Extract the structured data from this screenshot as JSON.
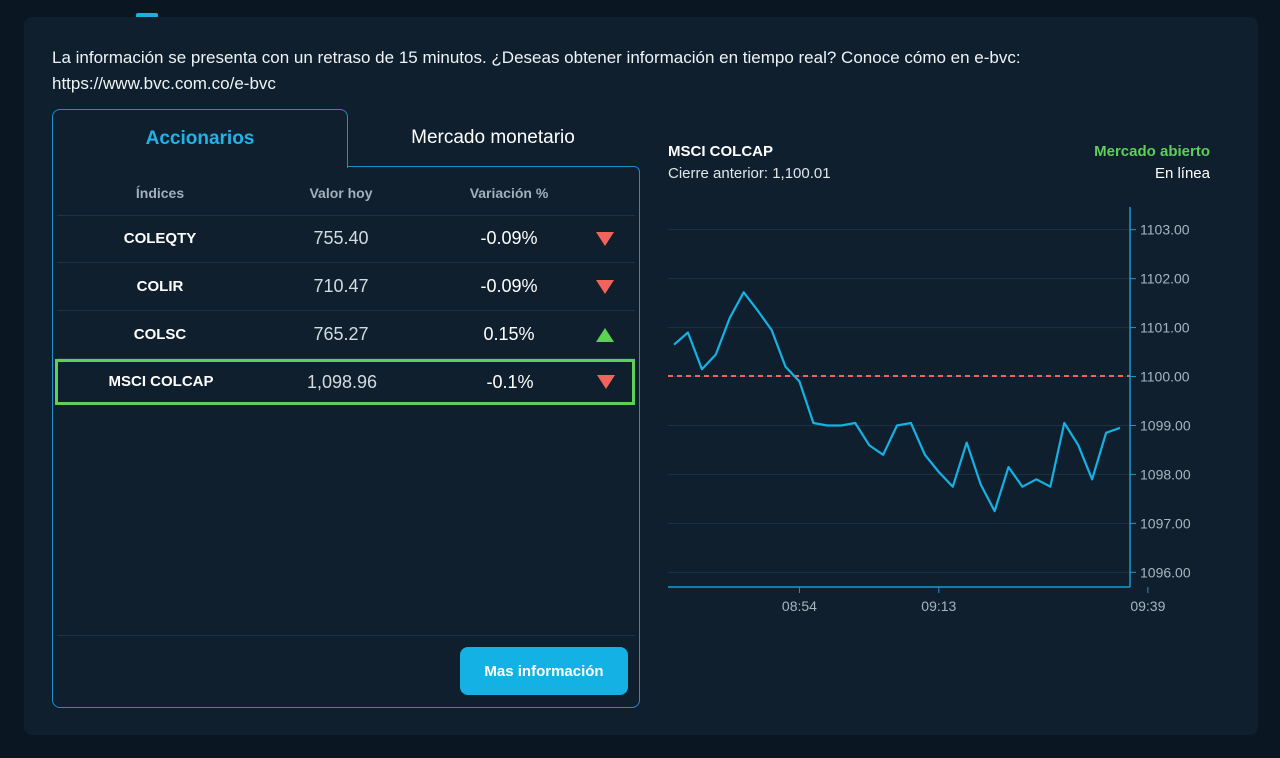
{
  "notice": "La información se presenta con un retraso de 15 minutos. ¿Deseas obtener información en tiempo real? Conoce cómo en e-bvc: https://www.bvc.com.co/e-bvc",
  "tabs": {
    "active": "Accionarios",
    "other": "Mercado monetario"
  },
  "table": {
    "headers": [
      "Índices",
      "Valor hoy",
      "Variación %"
    ],
    "rows": [
      {
        "name": "COLEQTY",
        "value": "755.40",
        "variation": "-0.09%",
        "trend": "down"
      },
      {
        "name": "COLIR",
        "value": "710.47",
        "variation": "-0.09%",
        "trend": "down"
      },
      {
        "name": "COLSC",
        "value": "765.27",
        "variation": "0.15%",
        "trend": "up"
      },
      {
        "name": "MSCI COLCAP",
        "value": "1,098.96",
        "variation": "-0.1%",
        "trend": "down",
        "selected": true
      }
    ],
    "more_button": "Mas información"
  },
  "chart_header": {
    "title": "MSCI COLCAP",
    "previous_close": "Cierre anterior: 1,100.01",
    "status": "Mercado abierto",
    "status_detail": "En línea"
  },
  "colors": {
    "accent": "#14b2e4",
    "up": "#5fcf5a",
    "down": "#f2645a",
    "reference": "#f2645a",
    "background": "#0f1f2d"
  },
  "chart_data": {
    "type": "line",
    "title": "MSCI COLCAP",
    "xlabel": "",
    "ylabel": "",
    "ylim": [
      1095.7,
      1103.3
    ],
    "y_ticks": [
      1096.0,
      1097.0,
      1098.0,
      1099.0,
      1100.0,
      1101.0,
      1102.0,
      1103.0
    ],
    "y_tick_labels": [
      "1096.00",
      "1097.00",
      "1098.00",
      "1099.00",
      "1100.00",
      "1101.00",
      "1102.00",
      "1103.00"
    ],
    "x_ticks": [
      "08:54",
      "09:13",
      "09:39"
    ],
    "x_tick_index": [
      9,
      19,
      34
    ],
    "reference_line": 1100.01,
    "grid": true,
    "series": [
      {
        "values": [
          1100.65,
          1100.9,
          1100.15,
          1100.45,
          1101.2,
          1101.72,
          1101.35,
          1100.95,
          1100.2,
          1099.9,
          1099.05,
          1099.0,
          1099.0,
          1099.05,
          1098.6,
          1098.4,
          1099.0,
          1099.05,
          1098.4,
          1098.05,
          1097.75,
          1098.65,
          1097.8,
          1097.25,
          1098.15,
          1097.75,
          1097.9,
          1097.75,
          1099.05,
          1098.6,
          1097.9,
          1098.85,
          1098.95
        ]
      }
    ]
  }
}
